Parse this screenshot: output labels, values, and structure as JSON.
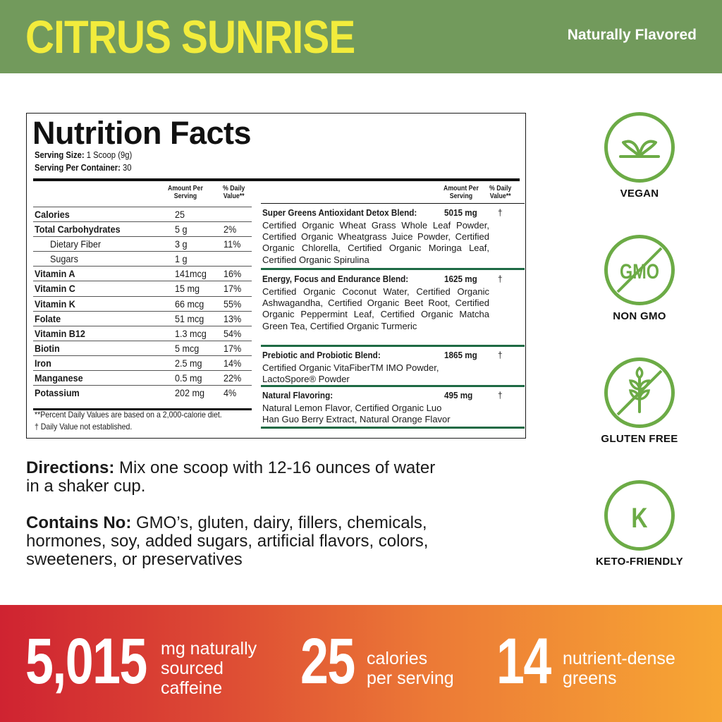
{
  "header": {
    "title": "CITRUS SUNRISE",
    "tagline": "Naturally Flavored"
  },
  "nutrition": {
    "title": "Nutrition Facts",
    "serving_size_label": "Serving Size:",
    "serving_size_value": "1 Scoop (9g)",
    "servings_label": "Serving Per Container:",
    "servings_value": "30",
    "col_amount": "Amount Per Serving",
    "col_amount_l1": "Amount Per",
    "col_amount_l2": "Serving",
    "col_dv_l1": "% Daily",
    "col_dv_l2": "Value**",
    "rows": [
      {
        "name": "Calories",
        "amount": "25",
        "dv": ""
      },
      {
        "name": "Total Carbohydrates",
        "amount": "5 g",
        "dv": "2%"
      },
      {
        "name": "Dietary Fiber",
        "amount": "3 g",
        "dv": "11%"
      },
      {
        "name": "Sugars",
        "amount": "1 g",
        "dv": ""
      },
      {
        "name": "Vitamin A",
        "amount": "141mcg",
        "dv": "16%"
      },
      {
        "name": "Vitamin C",
        "amount": "15 mg",
        "dv": "17%"
      },
      {
        "name": "Vitamin K",
        "amount": "66 mcg",
        "dv": "55%"
      },
      {
        "name": "Folate",
        "amount": "51 mcg",
        "dv": "13%"
      },
      {
        "name": "Vitamin B12",
        "amount": "1.3 mcg",
        "dv": "54%"
      },
      {
        "name": "Biotin",
        "amount": "5 mcg",
        "dv": "17%"
      },
      {
        "name": "Iron",
        "amount": "2.5 mg",
        "dv": "14%"
      },
      {
        "name": "Manganese",
        "amount": "0.5 mg",
        "dv": "22%"
      },
      {
        "name": "Potassium",
        "amount": "202 mg",
        "dv": "4%"
      }
    ],
    "footnote1": "**Percent Daily Values are based on a 2,000-calorie diet.",
    "footnote2": "† Daily Value not established.",
    "blends": [
      {
        "name": "Super Greens Antioxidant Detox Blend:",
        "amount": "5015 mg",
        "dv": "†",
        "ingredients": "Certified Organic Wheat Grass Whole Leaf Powder, Certified Organic Wheatgrass Juice Powder, Certified Organic Chlorella, Certified Organic Moringa Leaf, Certified Organic Spirulina"
      },
      {
        "name": "Energy, Focus and Endurance Blend:",
        "amount": "1625 mg",
        "dv": "†",
        "ingredients": "Certified Organic Coconut Water, Certified Organic Ashwagandha, Certified Organic Beet Root, Certified Organic Peppermint Leaf, Certified Organic Matcha Green Tea, Certified Organic Turmeric"
      },
      {
        "name": "Prebiotic and Probiotic Blend:",
        "amount": "1865 mg",
        "dv": "†",
        "ingredients": "Certified Organic VitaFiberTM IMO Powder, LactoSpore® Powder"
      },
      {
        "name": "Natural Flavoring:",
        "amount": "495 mg",
        "dv": "†",
        "ingredients": "Natural Lemon Flavor, Certified Organic Luo Han Guo Berry Extract, Natural Orange Flavor"
      }
    ]
  },
  "directions": {
    "label": "Directions:",
    "text_l1": " Mix one scoop with 12-16 ounces of water",
    "text_l2": "in a shaker cup."
  },
  "contains_no": {
    "label": "Contains No:",
    "text_l1": " GMO’s, gluten, dairy, fillers, chemicals,",
    "text_l2": "hormones, soy, added sugars, artificial flavors, colors,",
    "text_l3": "sweeteners, or preservatives"
  },
  "badges": [
    {
      "label": "VEGAN",
      "icon": "leaf-icon"
    },
    {
      "label": "NON GMO",
      "icon": "non-gmo-icon",
      "icon_text": "GMO"
    },
    {
      "label": "GLUTEN FREE",
      "icon": "gluten-free-icon"
    },
    {
      "label": "KETO-FRIENDLY",
      "icon": "keto-icon",
      "icon_text": "K"
    }
  ],
  "colors": {
    "header_bg": "#729a5c",
    "title": "#f2ec3c",
    "badge_green": "#6cab46",
    "rule_green": "#1e6a44",
    "footer_start": "#cf2331",
    "footer_end": "#f7a734"
  },
  "stats": [
    {
      "value": "5,015",
      "l1": "mg naturally",
      "l2": "sourced",
      "l3": "caffeine"
    },
    {
      "value": "25",
      "l1": "calories",
      "l2": "per serving"
    },
    {
      "value": "14",
      "l1": "nutrient-dense",
      "l2": "greens"
    }
  ]
}
